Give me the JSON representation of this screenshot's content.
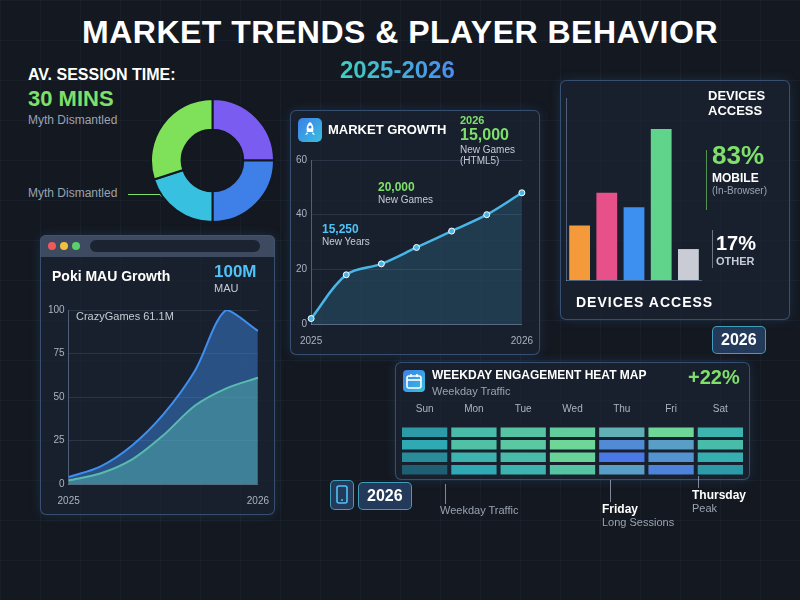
{
  "title": "MARKET TRENDS & PLAYER BEHAVIOR",
  "subtitle": "2025-2026",
  "chart_data": [
    {
      "type": "doughnut",
      "title": "AV. SESSION TIME:",
      "subtitle": "30 MINS",
      "values": [
        25,
        25,
        20,
        30
      ],
      "colors": [
        "#7b5cf0",
        "#3f7fe8",
        "#38c0e0",
        "#7fe05a"
      ],
      "annotations": [
        [
          "Myth Dismantled"
        ],
        [
          "Myth Dismantled"
        ]
      ]
    },
    {
      "type": "line",
      "title": "MARKET GROWTH",
      "categories": [
        "2025",
        null,
        null,
        null,
        null,
        null,
        "2026"
      ],
      "values": [
        2,
        18,
        22,
        28,
        34,
        40,
        48
      ],
      "color": "#49b6e8",
      "ylim": [
        0,
        60
      ],
      "yticks": [
        0,
        20,
        40,
        60
      ],
      "grid": true,
      "annotations": [
        [
          "15,250",
          "New Years"
        ],
        [
          "20,000",
          "New Games"
        ],
        [
          "2026",
          "15,000",
          "New Games",
          "(HTML5)"
        ]
      ]
    },
    {
      "type": "area",
      "title": "Poki MAU Growth",
      "categories": [
        "2025",
        null,
        null,
        null,
        null,
        null,
        "2026"
      ],
      "series": [
        {
          "color": "#3f8ff0",
          "values": [
            4,
            10,
            22,
            40,
            65,
            100,
            88
          ]
        },
        {
          "color": "#6fe07a",
          "values": [
            2,
            6,
            14,
            28,
            45,
            55,
            61.1
          ]
        }
      ],
      "ylim": [
        0,
        100
      ],
      "yticks": [
        0,
        25,
        50,
        75,
        100
      ],
      "grid": true,
      "annotations": [
        [
          "100M",
          "MAU"
        ],
        [
          "CrazyGames 61.1M"
        ]
      ]
    },
    {
      "type": "bar",
      "title": "DEVICES ACCESS",
      "categories": [
        null,
        null,
        null,
        null,
        null
      ],
      "values": [
        30,
        48,
        40,
        83,
        17
      ],
      "colors": [
        "#f59a3a",
        "#e8508a",
        "#3d8ff0",
        "#5fd48a",
        "#c9ccd4"
      ],
      "ylim": [
        0,
        100
      ],
      "tick_labels": false,
      "grid": false,
      "annotations": [
        [
          "83%",
          "MOBILE",
          "(In-Browser)"
        ],
        [
          "17%",
          "OTHER"
        ],
        [
          "DEVICES ACCESS"
        ]
      ]
    },
    {
      "type": "heatmap",
      "title": "WEEKDAY ENGAGEMENT HEAT MAP",
      "subtitle": "Weekday Traffic",
      "categories": [
        "Sun",
        "Mon",
        "Tue",
        "Wed",
        "Thu",
        "Fri",
        "Sat"
      ],
      "cells": [
        [
          40,
          55,
          60,
          65,
          80,
          70,
          50
        ],
        [
          45,
          58,
          62,
          70,
          90,
          85,
          55
        ],
        [
          35,
          50,
          55,
          68,
          95,
          88,
          48
        ],
        [
          20,
          45,
          50,
          60,
          85,
          92,
          40
        ]
      ],
      "tick_labels": "x",
      "annotations": [
        [
          "+22%"
        ],
        [
          "2026"
        ],
        [
          "Thursday",
          "Peak"
        ],
        [
          "Friday",
          "Long Sessions"
        ],
        [
          "Weekday Traffic"
        ],
        [
          "2026"
        ]
      ]
    }
  ]
}
